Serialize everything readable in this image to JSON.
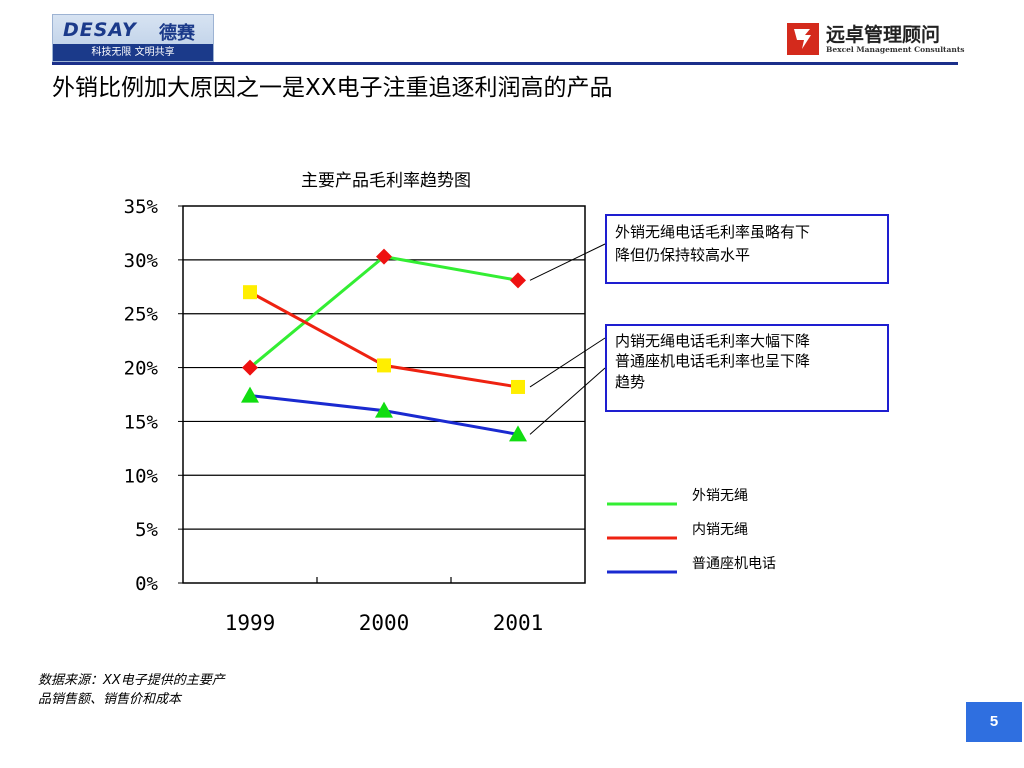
{
  "header": {
    "left_logo": {
      "brand": "DESAY",
      "brand_cn": "德赛",
      "slogan": "科技无限 文明共享"
    },
    "right_logo": {
      "name_cn": "远卓管理顾问",
      "name_en": "Bexcel Management Consultants"
    },
    "title": "外销比例加大原因之一是XX电子注重追逐利润高的产品"
  },
  "chart_data": {
    "type": "line",
    "title": "主要产品毛利率趋势图",
    "categories": [
      "1999",
      "2000",
      "2001"
    ],
    "ylim": [
      0,
      0.35
    ],
    "y_ticks": [
      "0%",
      "5%",
      "10%",
      "15%",
      "20%",
      "25%",
      "30%",
      "35%"
    ],
    "grid": true,
    "legend_position": "bottom-right",
    "series": [
      {
        "name": "外销无绳",
        "values": [
          0.2,
          0.303,
          0.281
        ],
        "color": "#33ee33",
        "marker": "diamond",
        "marker_color": "#ee1111"
      },
      {
        "name": "内销无绳",
        "values": [
          0.27,
          0.202,
          0.182
        ],
        "color": "#ee2211",
        "marker": "square",
        "marker_color": "#ffee00"
      },
      {
        "name": "普通座机电话",
        "values": [
          0.174,
          0.16,
          0.138
        ],
        "color": "#1a2ad0",
        "marker": "triangle",
        "marker_color": "#11dd11"
      }
    ],
    "annotations": [
      {
        "lines": [
          "外销无绳电话毛利率虽略有下",
          "降但仍保持较高水平"
        ]
      },
      {
        "lines": [
          "内销无绳电话毛利率大幅下降",
          "普通座机电话毛利率也呈下降",
          "趋势"
        ]
      }
    ]
  },
  "footer": {
    "source_lines": [
      "数据来源：XX电子提供的主要产",
      "品销售额、销售价和成本"
    ],
    "page_number": "5"
  },
  "colors": {
    "accent": "#1b2f8a",
    "page_badge": "#2f6fe0",
    "note_border": "#1e1ed0"
  }
}
